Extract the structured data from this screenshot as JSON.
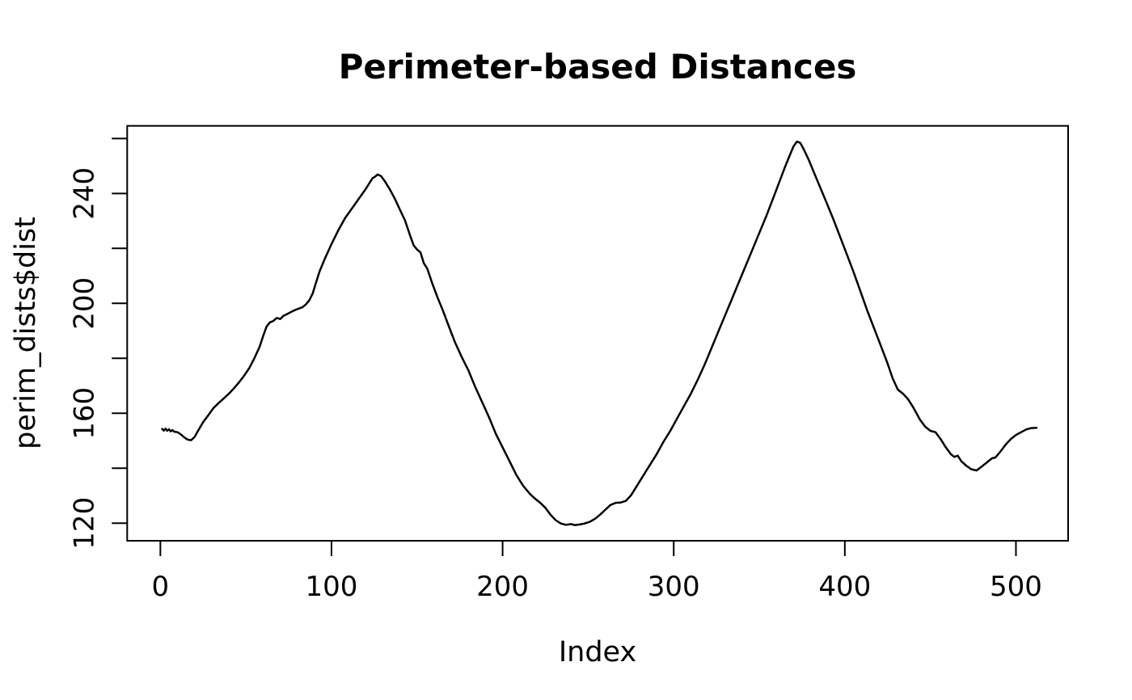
{
  "title": "Perimeter-based Distances",
  "chart_data": {
    "type": "line",
    "title": "Perimeter-based Distances",
    "xlabel": "Index",
    "ylabel": "perim_dists$dist",
    "grid": false,
    "legend": null,
    "background": "#ffffff",
    "line_color": "#000000",
    "axis_color": "#000000",
    "xlim": [
      -19.4,
      530.5
    ],
    "ylim": [
      113.6,
      264.6
    ],
    "x_ticks": [
      [
        0,
        "0"
      ],
      [
        100,
        "100"
      ],
      [
        200,
        "200"
      ],
      [
        300,
        "300"
      ],
      [
        400,
        "400"
      ],
      [
        500,
        "500"
      ]
    ],
    "y_ticks": [
      [
        120,
        "120"
      ],
      [
        140,
        ""
      ],
      [
        160,
        "160"
      ],
      [
        180,
        ""
      ],
      [
        200,
        "200"
      ],
      [
        220,
        ""
      ],
      [
        240,
        "240"
      ],
      [
        260,
        ""
      ]
    ],
    "series": [
      {
        "name": "perim_dists$dist",
        "points": [
          [
            1,
            154.3
          ],
          [
            2,
            153.7
          ],
          [
            3,
            154.4
          ],
          [
            4,
            153.6
          ],
          [
            5,
            154.2
          ],
          [
            6,
            153.4
          ],
          [
            7,
            153.9
          ],
          [
            8,
            153.3
          ],
          [
            10,
            153.1
          ],
          [
            12,
            152.3
          ],
          [
            14,
            151.2
          ],
          [
            16,
            150.4
          ],
          [
            18,
            150.2
          ],
          [
            20,
            151.4
          ],
          [
            22,
            153.6
          ],
          [
            25,
            156.8
          ],
          [
            28,
            159.3
          ],
          [
            31,
            161.9
          ],
          [
            34,
            163.7
          ],
          [
            37,
            165.4
          ],
          [
            40,
            167.1
          ],
          [
            43,
            169.1
          ],
          [
            46,
            171.3
          ],
          [
            49,
            173.7
          ],
          [
            52,
            176.5
          ],
          [
            55,
            180.1
          ],
          [
            58,
            184.2
          ],
          [
            60,
            188.0
          ],
          [
            62,
            191.5
          ],
          [
            64,
            193.1
          ],
          [
            66,
            193.6
          ],
          [
            68,
            194.7
          ],
          [
            70,
            194.3
          ],
          [
            72,
            195.5
          ],
          [
            74,
            196.1
          ],
          [
            77,
            197.1
          ],
          [
            80,
            197.9
          ],
          [
            83,
            198.6
          ],
          [
            85,
            199.6
          ],
          [
            87,
            201.1
          ],
          [
            89,
            203.6
          ],
          [
            91,
            207.6
          ],
          [
            93,
            211.6
          ],
          [
            96,
            216.1
          ],
          [
            100,
            221.6
          ],
          [
            104,
            226.6
          ],
          [
            108,
            231.1
          ],
          [
            112,
            234.6
          ],
          [
            116,
            238.1
          ],
          [
            120,
            241.6
          ],
          [
            122,
            243.6
          ],
          [
            124,
            245.6
          ],
          [
            125,
            245.9
          ],
          [
            127,
            246.9
          ],
          [
            129,
            246.3
          ],
          [
            131,
            244.6
          ],
          [
            134,
            241.6
          ],
          [
            137,
            238.1
          ],
          [
            140,
            234.1
          ],
          [
            143,
            230.1
          ],
          [
            146,
            224.6
          ],
          [
            148,
            221.1
          ],
          [
            150,
            219.6
          ],
          [
            152,
            218.6
          ],
          [
            154,
            214.6
          ],
          [
            156,
            212.6
          ],
          [
            159,
            207.1
          ],
          [
            162,
            202.1
          ],
          [
            165,
            197.6
          ],
          [
            168,
            192.6
          ],
          [
            172,
            186.1
          ],
          [
            176,
            180.6
          ],
          [
            180,
            175.6
          ],
          [
            184,
            169.6
          ],
          [
            188,
            164.1
          ],
          [
            192,
            158.6
          ],
          [
            196,
            152.6
          ],
          [
            200,
            147.6
          ],
          [
            204,
            142.6
          ],
          [
            208,
            137.6
          ],
          [
            212,
            133.6
          ],
          [
            216,
            130.6
          ],
          [
            219,
            128.9
          ],
          [
            222,
            127.4
          ],
          [
            225,
            125.6
          ],
          [
            228,
            123.1
          ],
          [
            231,
            121.1
          ],
          [
            234,
            119.9
          ],
          [
            237,
            119.4
          ],
          [
            240,
            119.7
          ],
          [
            242,
            119.3
          ],
          [
            245,
            119.5
          ],
          [
            248,
            119.9
          ],
          [
            251,
            120.5
          ],
          [
            254,
            121.6
          ],
          [
            257,
            123.1
          ],
          [
            260,
            124.9
          ],
          [
            263,
            126.6
          ],
          [
            266,
            127.4
          ],
          [
            269,
            127.5
          ],
          [
            272,
            128.1
          ],
          [
            275,
            130.1
          ],
          [
            278,
            133.1
          ],
          [
            282,
            137.1
          ],
          [
            286,
            141.1
          ],
          [
            290,
            145.1
          ],
          [
            294,
            149.6
          ],
          [
            298,
            153.6
          ],
          [
            302,
            158.1
          ],
          [
            306,
            162.6
          ],
          [
            310,
            167.1
          ],
          [
            314,
            172.1
          ],
          [
            318,
            177.6
          ],
          [
            322,
            183.6
          ],
          [
            326,
            189.6
          ],
          [
            330,
            195.6
          ],
          [
            334,
            201.6
          ],
          [
            338,
            207.6
          ],
          [
            342,
            213.6
          ],
          [
            346,
            219.6
          ],
          [
            350,
            225.6
          ],
          [
            354,
            231.6
          ],
          [
            358,
            238.1
          ],
          [
            362,
            244.6
          ],
          [
            365,
            249.6
          ],
          [
            368,
            254.1
          ],
          [
            370,
            257.1
          ],
          [
            372,
            258.9
          ],
          [
            374,
            258.4
          ],
          [
            376,
            256.1
          ],
          [
            379,
            252.1
          ],
          [
            382,
            247.6
          ],
          [
            385,
            243.1
          ],
          [
            389,
            237.1
          ],
          [
            393,
            231.1
          ],
          [
            397,
            224.6
          ],
          [
            401,
            218.1
          ],
          [
            405,
            211.6
          ],
          [
            409,
            204.6
          ],
          [
            413,
            197.6
          ],
          [
            417,
            191.1
          ],
          [
            421,
            184.6
          ],
          [
            425,
            178.1
          ],
          [
            428,
            172.6
          ],
          [
            431,
            168.6
          ],
          [
            434,
            167.1
          ],
          [
            437,
            165.1
          ],
          [
            440,
            162.1
          ],
          [
            444,
            157.6
          ],
          [
            447,
            155.1
          ],
          [
            450,
            153.6
          ],
          [
            453,
            153.1
          ],
          [
            456,
            150.6
          ],
          [
            459,
            147.6
          ],
          [
            462,
            145.1
          ],
          [
            464,
            144.1
          ],
          [
            466,
            144.6
          ],
          [
            468,
            142.6
          ],
          [
            471,
            140.9
          ],
          [
            474,
            139.6
          ],
          [
            477,
            139.2
          ],
          [
            480,
            140.6
          ],
          [
            483,
            142.1
          ],
          [
            486,
            143.6
          ],
          [
            488,
            143.9
          ],
          [
            491,
            146.1
          ],
          [
            494,
            148.6
          ],
          [
            497,
            150.6
          ],
          [
            500,
            152.1
          ],
          [
            503,
            153.1
          ],
          [
            506,
            154.1
          ],
          [
            509,
            154.6
          ],
          [
            512,
            154.7
          ]
        ]
      }
    ]
  }
}
